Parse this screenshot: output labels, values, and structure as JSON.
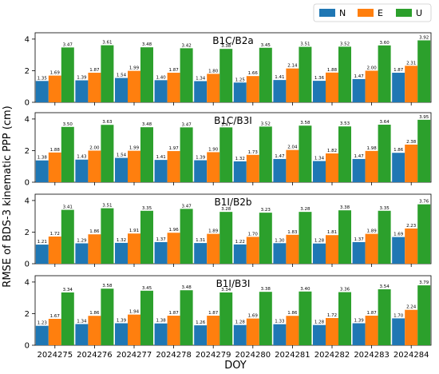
{
  "chart_data": {
    "type": "bar",
    "xlabel": "DOY",
    "ylabel": "RMSE of BDS-3 kinematic PPP (cm)",
    "categories": [
      "2024275",
      "2024276",
      "2024277",
      "2024278",
      "2024279",
      "2024280",
      "2024281",
      "2024282",
      "2024283",
      "2024284"
    ],
    "legend": {
      "placement": "top-right",
      "entries": [
        "N",
        "E",
        "U"
      ]
    },
    "colors": {
      "N": "#1f77b4",
      "E": "#ff7f0e",
      "U": "#2ca02c"
    },
    "ylim": [
      0,
      4.4
    ],
    "yticks": [
      0,
      2,
      4
    ],
    "grid": false,
    "panels": [
      {
        "title": "B1C/B2a",
        "series": [
          {
            "name": "N",
            "values": [
              1.35,
              1.39,
              1.54,
              1.4,
              1.34,
              1.25,
              1.41,
              1.36,
              1.47,
              1.87
            ]
          },
          {
            "name": "E",
            "values": [
              1.69,
              1.87,
              1.99,
              1.87,
              1.8,
              1.66,
              2.14,
              1.88,
              2.0,
              2.31
            ]
          },
          {
            "name": "U",
            "values": [
              3.47,
              3.61,
              3.48,
              3.42,
              3.38,
              3.45,
              3.51,
              3.52,
              3.6,
              3.92
            ]
          }
        ]
      },
      {
        "title": "B1C/B3I",
        "series": [
          {
            "name": "N",
            "values": [
              1.38,
              1.43,
              1.54,
              1.41,
              1.39,
              1.32,
              1.47,
              1.34,
              1.47,
              1.86
            ]
          },
          {
            "name": "E",
            "values": [
              1.88,
              2.0,
              1.99,
              1.97,
              1.9,
              1.73,
              2.04,
              1.82,
              1.98,
              2.38
            ]
          },
          {
            "name": "U",
            "values": [
              3.5,
              3.63,
              3.48,
              3.47,
              3.47,
              3.52,
              3.58,
              3.53,
              3.64,
              3.95
            ]
          }
        ]
      },
      {
        "title": "B1I/B2b",
        "series": [
          {
            "name": "N",
            "values": [
              1.21,
              1.29,
              1.32,
              1.37,
              1.31,
              1.22,
              1.3,
              1.28,
              1.37,
              1.69
            ]
          },
          {
            "name": "E",
            "values": [
              1.72,
              1.86,
              1.91,
              1.96,
              1.89,
              1.7,
              1.83,
              1.81,
              1.89,
              2.23
            ]
          },
          {
            "name": "U",
            "values": [
              3.41,
              3.51,
              3.35,
              3.47,
              3.28,
              3.23,
              3.28,
              3.38,
              3.35,
              3.76
            ]
          }
        ]
      },
      {
        "title": "B1I/B3I",
        "series": [
          {
            "name": "N",
            "values": [
              1.23,
              1.34,
              1.39,
              1.38,
              1.26,
              1.28,
              1.33,
              1.28,
              1.39,
              1.7
            ]
          },
          {
            "name": "E",
            "values": [
              1.67,
              1.86,
              1.94,
              1.87,
              1.87,
              1.69,
              1.86,
              1.72,
              1.87,
              2.24
            ]
          },
          {
            "name": "U",
            "values": [
              3.34,
              3.58,
              3.45,
              3.48,
              3.34,
              3.38,
              3.4,
              3.36,
              3.54,
              3.79
            ]
          }
        ]
      }
    ]
  }
}
